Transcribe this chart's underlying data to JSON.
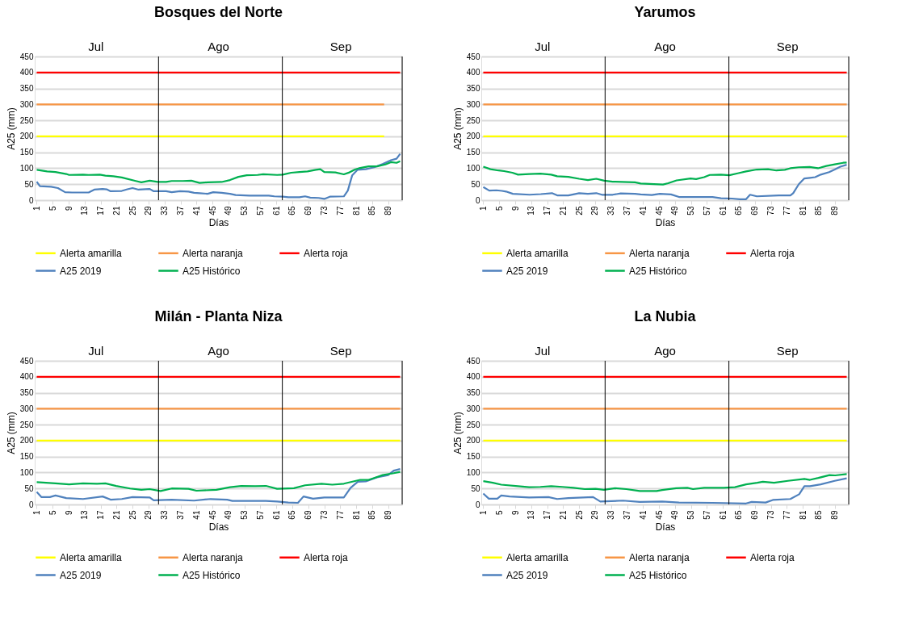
{
  "chart_data": [
    {
      "type": "line",
      "title": "Bosques del Norte",
      "xlabel": "Días",
      "ylabel": "A25 (mm)",
      "xlim": [
        0.5,
        92.5
      ],
      "xticks": [
        1,
        5,
        9,
        13,
        17,
        21,
        25,
        29,
        33,
        37,
        41,
        45,
        49,
        53,
        57,
        61,
        65,
        69,
        73,
        77,
        81,
        85,
        89
      ],
      "ylim": [
        0,
        450
      ],
      "yticks": [
        0,
        50,
        100,
        150,
        200,
        250,
        300,
        350,
        400,
        450
      ],
      "grid": "y",
      "legend": "bottom",
      "annotations": [
        "Jul",
        "Ago",
        "Sep"
      ],
      "ref_lines": [
        {
          "axis": "x",
          "value": 31.5,
          "color": "#000000"
        },
        {
          "axis": "x",
          "value": 62.5,
          "color": "#000000"
        },
        {
          "axis": "x",
          "value": 92.5,
          "color": "#000000"
        }
      ],
      "series": [
        {
          "name": "Alerta amarilla",
          "color": "#ffff00",
          "x": [
            1,
            88
          ],
          "values": [
            200,
            200
          ]
        },
        {
          "name": "Alerta naranja",
          "color": "#f79646",
          "x": [
            1,
            88
          ],
          "values": [
            300,
            300
          ]
        },
        {
          "name": "Alerta roja",
          "color": "#ff0000",
          "x": [
            1,
            92
          ],
          "values": [
            400,
            400
          ]
        },
        {
          "name": "A25 2019",
          "color": "#4f81bd",
          "x": [
            1,
            1.8,
            4.6,
            6.3,
            8.1,
            9.8,
            14,
            15.4,
            17.5,
            18.5,
            19.5,
            22.3,
            23.7,
            25,
            26.5,
            29.3,
            30.3,
            33.4,
            34.8,
            36.9,
            39,
            40.4,
            41.8,
            43.8,
            45.2,
            47.3,
            49.4,
            50.8,
            54.3,
            59.1,
            60.5,
            62.6,
            64,
            66.8,
            68.2,
            69.5,
            71.6,
            73,
            74.4,
            77.9,
            78.9,
            80,
            81.3,
            83.4,
            85.5,
            87.6,
            89.7,
            91.1,
            92
          ],
          "values": [
            58,
            44,
            42,
            38,
            25,
            24,
            24,
            33,
            35,
            34,
            28,
            29,
            34,
            38,
            33,
            35,
            28,
            28,
            25,
            28,
            27,
            23,
            22,
            20,
            25,
            23,
            20,
            16,
            14,
            14,
            12,
            11,
            9,
            9,
            12,
            8,
            7,
            4,
            11,
            12,
            30,
            78,
            95,
            97,
            103,
            113,
            125,
            130,
            145
          ]
        },
        {
          "name": "A25 Histórico",
          "color": "#00b050",
          "x": [
            1,
            3.6,
            5.7,
            8.4,
            9.1,
            12.6,
            14,
            16.8,
            18.2,
            20.2,
            22.3,
            25.8,
            27.2,
            29.3,
            31.3,
            33.4,
            34.8,
            37.6,
            39.7,
            41.8,
            43.8,
            47.3,
            49.4,
            51.5,
            53.6,
            56.3,
            57.7,
            61.2,
            62.6,
            64.7,
            66.8,
            68.8,
            70.9,
            72,
            73,
            75.8,
            77.9,
            79.3,
            80.7,
            82,
            84.1,
            86.2,
            88.3,
            89.7,
            91.1,
            92
          ],
          "values": [
            95,
            90,
            88,
            82,
            79,
            80,
            79,
            80,
            77,
            75,
            71,
            60,
            56,
            61,
            57,
            57,
            60,
            60,
            61,
            54,
            56,
            57,
            63,
            73,
            78,
            79,
            81,
            79,
            80,
            86,
            88,
            90,
            95,
            97,
            88,
            87,
            81,
            87,
            96,
            101,
            106,
            106,
            112,
            119,
            117,
            122
          ]
        }
      ]
    },
    {
      "type": "line",
      "title": "Yarumos",
      "xlabel": "Días",
      "ylabel": "A25 (mm)",
      "xlim": [
        0.5,
        92.5
      ],
      "xticks": [
        1,
        5,
        9,
        13,
        17,
        21,
        25,
        29,
        33,
        37,
        41,
        45,
        49,
        53,
        57,
        61,
        65,
        69,
        73,
        77,
        81,
        85,
        89
      ],
      "ylim": [
        0,
        450
      ],
      "yticks": [
        0,
        50,
        100,
        150,
        200,
        250,
        300,
        350,
        400,
        450
      ],
      "grid": "y",
      "legend": "bottom",
      "annotations": [
        "Jul",
        "Ago",
        "Sep"
      ],
      "ref_lines": [
        {
          "axis": "x",
          "value": 31.5,
          "color": "#000000"
        },
        {
          "axis": "x",
          "value": 62.5,
          "color": "#000000"
        },
        {
          "axis": "x",
          "value": 92.5,
          "color": "#000000"
        }
      ],
      "series": [
        {
          "name": "Alerta amarilla",
          "color": "#ffff00",
          "x": [
            1,
            92
          ],
          "values": [
            200,
            200
          ]
        },
        {
          "name": "Alerta naranja",
          "color": "#f79646",
          "x": [
            1,
            92
          ],
          "values": [
            300,
            300
          ]
        },
        {
          "name": "Alerta roja",
          "color": "#ff0000",
          "x": [
            1,
            92
          ],
          "values": [
            400,
            400
          ]
        },
        {
          "name": "A25 2019",
          "color": "#4f81bd",
          "x": [
            1,
            2.5,
            4.3,
            5.7,
            6.7,
            8.4,
            12.6,
            15.4,
            18.2,
            19.5,
            22.3,
            25,
            27.2,
            29.3,
            30.7,
            33.4,
            35.4,
            39,
            40.4,
            43.2,
            45.2,
            48,
            50,
            54.3,
            58.4,
            60.5,
            63.3,
            65.2,
            66.8,
            67.8,
            69.5,
            75,
            77.9,
            78.6,
            80,
            81.4,
            82.8,
            84.1,
            85.5,
            87.6,
            89,
            90.4,
            92
          ],
          "values": [
            41,
            30,
            31,
            29,
            27,
            20,
            17,
            19,
            22,
            15,
            15,
            22,
            20,
            22,
            17,
            17,
            21,
            20,
            18,
            16,
            20,
            18,
            10,
            10,
            10,
            6,
            5,
            3,
            3,
            17,
            12,
            15,
            15,
            22,
            50,
            68,
            70,
            72,
            80,
            88,
            96,
            105,
            111
          ]
        },
        {
          "name": "A25 Histórico",
          "color": "#00b050",
          "x": [
            1,
            2.8,
            4.8,
            6.2,
            8.3,
            9.7,
            12.5,
            15.3,
            18,
            19.5,
            22.3,
            25,
            27.2,
            29.3,
            31.3,
            33.4,
            39,
            40.4,
            46,
            47.3,
            49.4,
            52.9,
            54.3,
            56.3,
            57.7,
            60.5,
            62.6,
            64.7,
            66.8,
            69.5,
            72.3,
            74.4,
            76.5,
            77.9,
            80,
            82.7,
            84.8,
            86.9,
            89,
            91.1,
            92
          ],
          "values": [
            105,
            97,
            93,
            91,
            86,
            80,
            82,
            83,
            80,
            75,
            73,
            67,
            63,
            67,
            61,
            58,
            56,
            52,
            49,
            53,
            62,
            68,
            66,
            72,
            79,
            80,
            78,
            84,
            90,
            96,
            97,
            93,
            95,
            100,
            103,
            104,
            100,
            107,
            112,
            117,
            118
          ]
        }
      ]
    },
    {
      "type": "line",
      "title": "Milán - Planta Niza",
      "xlabel": "Días",
      "ylabel": "A25 (mm)",
      "xlim": [
        0.5,
        92.5
      ],
      "xticks": [
        1,
        5,
        9,
        13,
        17,
        21,
        25,
        29,
        33,
        37,
        41,
        45,
        49,
        53,
        57,
        61,
        65,
        69,
        73,
        77,
        81,
        85,
        89
      ],
      "ylim": [
        0,
        450
      ],
      "yticks": [
        0,
        50,
        100,
        150,
        200,
        250,
        300,
        350,
        400,
        450
      ],
      "grid": "y",
      "legend": "bottom",
      "annotations": [
        "Jul",
        "Ago",
        "Sep"
      ],
      "ref_lines": [
        {
          "axis": "x",
          "value": 31.5,
          "color": "#000000"
        },
        {
          "axis": "x",
          "value": 62.5,
          "color": "#000000"
        },
        {
          "axis": "x",
          "value": 92.5,
          "color": "#000000"
        }
      ],
      "series": [
        {
          "name": "Alerta amarilla",
          "color": "#ffff00",
          "x": [
            1,
            92
          ],
          "values": [
            200,
            200
          ]
        },
        {
          "name": "Alerta naranja",
          "color": "#f79646",
          "x": [
            1,
            92
          ],
          "values": [
            300,
            300
          ]
        },
        {
          "name": "Alerta roja",
          "color": "#ff0000",
          "x": [
            1,
            92
          ],
          "values": [
            400,
            400
          ]
        },
        {
          "name": "A25 2019",
          "color": "#4f81bd",
          "x": [
            1,
            2.2,
            4.3,
            5.7,
            8.4,
            12.6,
            17.5,
            19.5,
            22.3,
            25,
            29.3,
            30.3,
            34.8,
            40.4,
            44.5,
            48.7,
            50,
            58.4,
            61.2,
            64,
            66.4,
            67.8,
            70.2,
            73,
            77.9,
            79.6,
            81.4,
            83.4,
            86.2,
            89,
            90.4,
            92
          ],
          "values": [
            39,
            23,
            23,
            28,
            20,
            17,
            25,
            15,
            17,
            23,
            22,
            13,
            15,
            12,
            17,
            15,
            11,
            11,
            9,
            6,
            5,
            25,
            18,
            22,
            22,
            52,
            71,
            72,
            85,
            92,
            106,
            111
          ]
        },
        {
          "name": "A25 Histórico",
          "color": "#00b050",
          "x": [
            1,
            5.7,
            9.1,
            12.6,
            16.1,
            18.2,
            20.9,
            24.4,
            27.2,
            29.3,
            32,
            34.8,
            39,
            41,
            46,
            49.4,
            52.2,
            55.7,
            58.4,
            61.2,
            65.4,
            68.2,
            72.3,
            75,
            77.9,
            82,
            84.1,
            85.5,
            87.6,
            90.4,
            92
          ],
          "values": [
            70,
            66,
            63,
            66,
            65,
            66,
            58,
            50,
            46,
            48,
            42,
            50,
            49,
            43,
            46,
            54,
            58,
            57,
            58,
            49,
            51,
            60,
            65,
            62,
            65,
            77,
            77,
            83,
            92,
            98,
            102
          ]
        }
      ]
    },
    {
      "type": "line",
      "title": "La Nubia",
      "xlabel": "Días",
      "ylabel": "A25 (mm)",
      "xlim": [
        0.5,
        92.5
      ],
      "xticks": [
        1,
        5,
        9,
        13,
        17,
        21,
        25,
        29,
        33,
        37,
        41,
        45,
        49,
        53,
        57,
        61,
        65,
        69,
        73,
        77,
        81,
        85,
        89
      ],
      "ylim": [
        0,
        450
      ],
      "yticks": [
        0,
        50,
        100,
        150,
        200,
        250,
        300,
        350,
        400,
        450
      ],
      "grid": "y",
      "legend": "bottom",
      "annotations": [
        "Jul",
        "Ago",
        "Sep"
      ],
      "ref_lines": [
        {
          "axis": "x",
          "value": 31.5,
          "color": "#000000"
        },
        {
          "axis": "x",
          "value": 62.5,
          "color": "#000000"
        },
        {
          "axis": "x",
          "value": 92.5,
          "color": "#000000"
        }
      ],
      "series": [
        {
          "name": "Alerta amarilla",
          "color": "#ffff00",
          "x": [
            1,
            92
          ],
          "values": [
            200,
            200
          ]
        },
        {
          "name": "Alerta naranja",
          "color": "#f79646",
          "x": [
            1,
            92
          ],
          "values": [
            300,
            300
          ]
        },
        {
          "name": "Alerta roja",
          "color": "#ff0000",
          "x": [
            1,
            92
          ],
          "values": [
            400,
            400
          ]
        },
        {
          "name": "A25 2019",
          "color": "#4f81bd",
          "x": [
            1,
            2.4,
            4.5,
            5.5,
            7.6,
            12.5,
            17.3,
            19.5,
            22.3,
            28.5,
            30.3,
            36,
            40.2,
            45.8,
            50,
            58.4,
            66.8,
            68.2,
            71.7,
            73.5,
            77.9,
            80.1,
            81.4,
            82.8,
            85.5,
            89,
            92
          ],
          "values": [
            34,
            18,
            18,
            28,
            25,
            22,
            23,
            17,
            20,
            23,
            9,
            12,
            8,
            9,
            6,
            5,
            3,
            8,
            6,
            14,
            17,
            32,
            57,
            57,
            63,
            74,
            82
          ]
        },
        {
          "name": "A25 Histórico",
          "color": "#00b050",
          "x": [
            1,
            3.4,
            5.5,
            9.7,
            12.5,
            15.3,
            18,
            20.8,
            23.6,
            26.4,
            29.1,
            31.2,
            34,
            36.8,
            40.2,
            44.4,
            45.8,
            49.3,
            52.1,
            53.5,
            56.3,
            61.2,
            64,
            66.8,
            69.6,
            71,
            73.8,
            77.3,
            81.4,
            82.8,
            84.9,
            87.7,
            89.1,
            92
          ],
          "values": [
            73,
            68,
            62,
            57,
            54,
            55,
            57,
            55,
            52,
            48,
            49,
            46,
            51,
            48,
            42,
            42,
            45,
            51,
            52,
            48,
            52,
            52,
            54,
            63,
            68,
            71,
            68,
            74,
            80,
            77,
            83,
            92,
            91,
            95
          ]
        }
      ]
    }
  ]
}
